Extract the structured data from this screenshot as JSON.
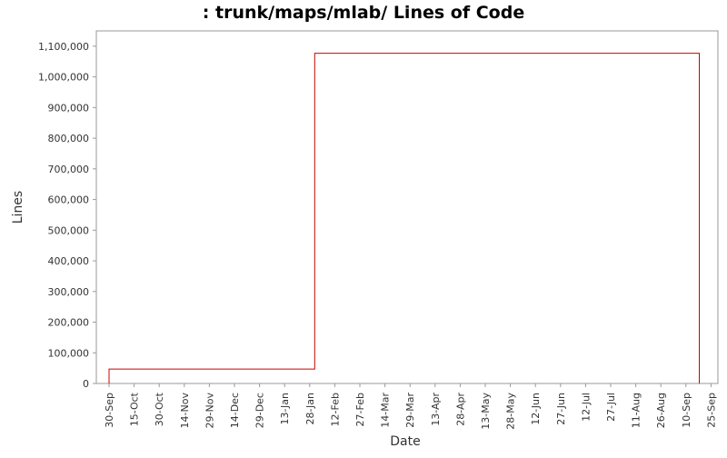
{
  "chart_data": {
    "type": "line",
    "title": ": trunk/maps/mlab/ Lines of Code",
    "xlabel": "Date",
    "ylabel": "Lines",
    "x_ticks": [
      "30-Sep",
      "15-Oct",
      "30-Oct",
      "14-Nov",
      "29-Nov",
      "14-Dec",
      "29-Dec",
      "13-Jan",
      "28-Jan",
      "12-Feb",
      "27-Feb",
      "14-Mar",
      "29-Mar",
      "13-Apr",
      "28-Apr",
      "13-May",
      "28-May",
      "12-Jun",
      "27-Jun",
      "12-Jul",
      "27-Jul",
      "11-Aug",
      "26-Aug",
      "10-Sep",
      "25-Sep"
    ],
    "y_ticks": [
      "0",
      "100,000",
      "200,000",
      "300,000",
      "400,000",
      "500,000",
      "600,000",
      "700,000",
      "800,000",
      "900,000",
      "1,000,000",
      "1,100,000"
    ],
    "ylim": [
      0,
      1150000
    ],
    "step": true,
    "grid": false,
    "legend": "none",
    "series": [
      {
        "color": "#cc0000",
        "points": [
          {
            "x": "30-Sep",
            "y": 0
          },
          {
            "x": "30-Sep",
            "y": 47000
          },
          {
            "x": "31-Jan",
            "y": 47000
          },
          {
            "x": "31-Jan",
            "y": 1077000
          },
          {
            "x": "18-Sep",
            "y": 1077000
          },
          {
            "x": "18-Sep",
            "y": 0
          }
        ]
      }
    ]
  }
}
